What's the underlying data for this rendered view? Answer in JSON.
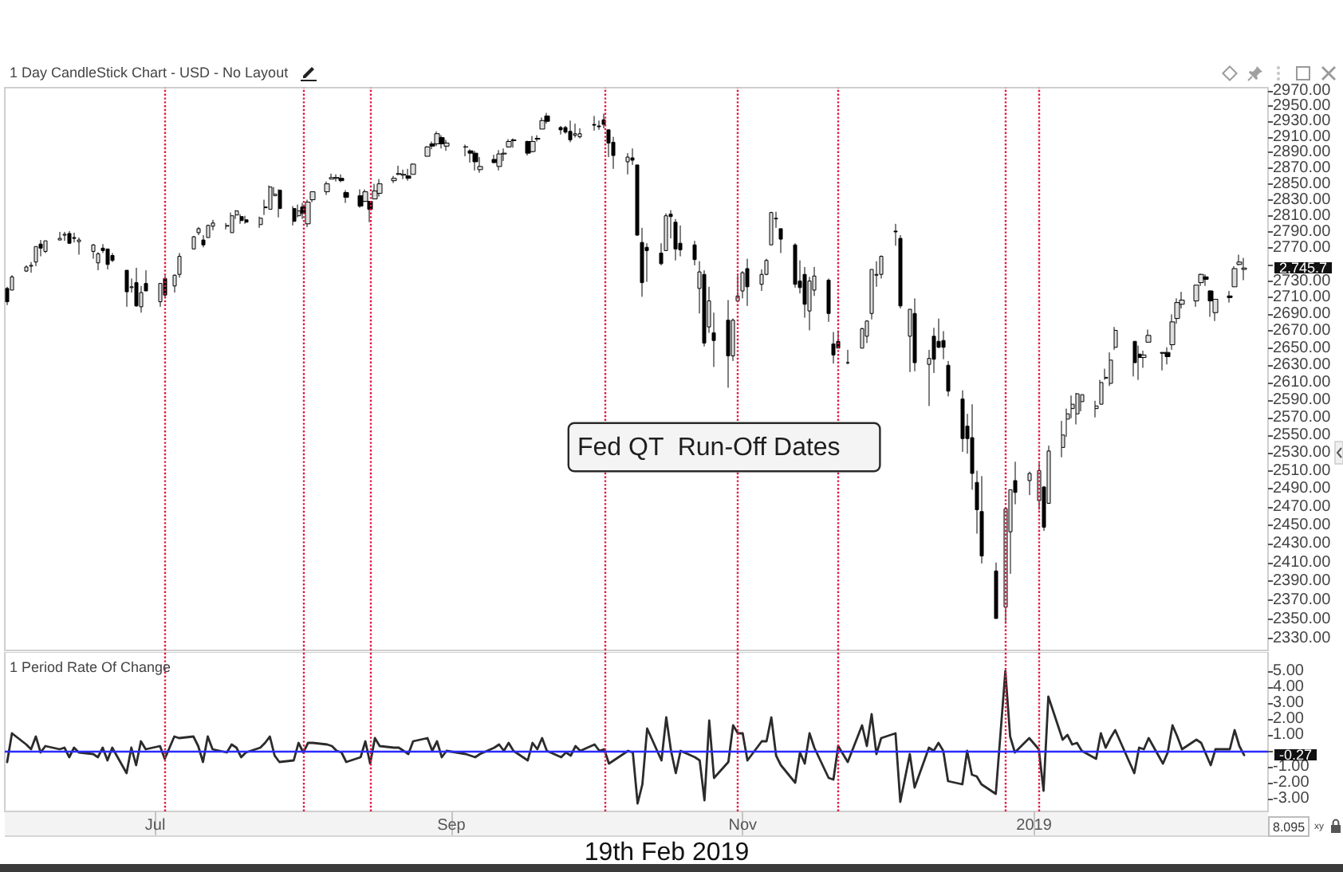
{
  "chart_data": [
    {
      "type": "candlestick",
      "title": "1 Day CandleStick Chart - USD - No Layout",
      "color": "#000000",
      "log": true,
      "tick_labels": "y",
      "x": [
        "2018-05-31",
        "2018-06-01",
        "2018-06-04",
        "2018-06-05",
        "2018-06-06",
        "2018-06-07",
        "2018-06-08",
        "2018-06-11",
        "2018-06-12",
        "2018-06-13",
        "2018-06-14",
        "2018-06-15",
        "2018-06-18",
        "2018-06-19",
        "2018-06-20",
        "2018-06-21",
        "2018-06-22",
        "2018-06-25",
        "2018-06-26",
        "2018-06-27",
        "2018-06-28",
        "2018-06-29",
        "2018-07-02",
        "2018-07-03",
        "2018-07-05",
        "2018-07-06",
        "2018-07-09",
        "2018-07-10",
        "2018-07-11",
        "2018-07-12",
        "2018-07-13",
        "2018-07-16",
        "2018-07-17",
        "2018-07-18",
        "2018-07-19",
        "2018-07-20",
        "2018-07-23",
        "2018-07-24",
        "2018-07-25",
        "2018-07-26",
        "2018-07-27",
        "2018-07-30",
        "2018-07-31",
        "2018-08-01",
        "2018-08-02",
        "2018-08-03",
        "2018-08-06",
        "2018-08-07",
        "2018-08-08",
        "2018-08-09",
        "2018-08-10",
        "2018-08-13",
        "2018-08-14",
        "2018-08-15",
        "2018-08-16",
        "2018-08-17",
        "2018-08-20",
        "2018-08-21",
        "2018-08-22",
        "2018-08-23",
        "2018-08-24",
        "2018-08-27",
        "2018-08-28",
        "2018-08-29",
        "2018-08-30",
        "2018-08-31",
        "2018-09-04",
        "2018-09-05",
        "2018-09-06",
        "2018-09-07",
        "2018-09-10",
        "2018-09-11",
        "2018-09-12",
        "2018-09-13",
        "2018-09-14",
        "2018-09-17",
        "2018-09-18",
        "2018-09-19",
        "2018-09-20",
        "2018-09-21",
        "2018-09-24",
        "2018-09-25",
        "2018-09-26",
        "2018-09-27",
        "2018-09-28",
        "2018-10-01",
        "2018-10-02",
        "2018-10-03",
        "2018-10-04",
        "2018-10-05",
        "2018-10-08",
        "2018-10-09",
        "2018-10-10",
        "2018-10-11",
        "2018-10-12",
        "2018-10-15",
        "2018-10-16",
        "2018-10-17",
        "2018-10-18",
        "2018-10-19",
        "2018-10-22",
        "2018-10-23",
        "2018-10-24",
        "2018-10-25",
        "2018-10-26",
        "2018-10-29",
        "2018-10-30",
        "2018-10-31",
        "2018-11-01",
        "2018-11-02",
        "2018-11-05",
        "2018-11-06",
        "2018-11-07",
        "2018-11-08",
        "2018-11-09",
        "2018-11-12",
        "2018-11-13",
        "2018-11-14",
        "2018-11-15",
        "2018-11-16",
        "2018-11-19",
        "2018-11-20",
        "2018-11-21",
        "2018-11-23",
        "2018-11-26",
        "2018-11-27",
        "2018-11-28",
        "2018-11-29",
        "2018-11-30",
        "2018-12-03",
        "2018-12-04",
        "2018-12-06",
        "2018-12-07",
        "2018-12-10",
        "2018-12-11",
        "2018-12-12",
        "2018-12-13",
        "2018-12-14",
        "2018-12-17",
        "2018-12-18",
        "2018-12-19",
        "2018-12-20",
        "2018-12-21",
        "2018-12-24",
        "2018-12-26",
        "2018-12-27",
        "2018-12-28",
        "2018-12-31",
        "2019-01-02",
        "2019-01-03",
        "2019-01-04",
        "2019-01-07",
        "2019-01-08",
        "2019-01-09",
        "2019-01-10",
        "2019-01-11",
        "2019-01-14",
        "2019-01-15",
        "2019-01-16",
        "2019-01-17",
        "2019-01-18",
        "2019-01-22",
        "2019-01-23",
        "2019-01-24",
        "2019-01-25",
        "2019-01-28",
        "2019-01-29",
        "2019-01-30",
        "2019-01-31",
        "2019-02-01",
        "2019-02-04",
        "2019-02-05",
        "2019-02-06",
        "2019-02-07",
        "2019-02-08",
        "2019-02-11",
        "2019-02-12",
        "2019-02-13",
        "2019-02-14"
      ],
      "xlim": [
        "2018-05-30T12:00",
        "2019-02-19"
      ],
      "ohlc": [
        [
          2721,
          2723,
          2701,
          2705
        ],
        [
          2719,
          2737,
          2719,
          2735
        ],
        [
          2742,
          2749,
          2741,
          2747
        ],
        [
          2748,
          2753,
          2740,
          2749
        ],
        [
          2753,
          2772,
          2748,
          2772
        ],
        [
          2775,
          2780,
          2760,
          2770
        ],
        [
          2766,
          2779,
          2764,
          2779
        ],
        [
          2780,
          2790,
          2780,
          2782
        ],
        [
          2786,
          2790,
          2779,
          2787
        ],
        [
          2788,
          2791,
          2775,
          2776
        ],
        [
          2783,
          2789,
          2777,
          2782
        ],
        [
          2778,
          2783,
          2762,
          2780
        ],
        [
          2766,
          2775,
          2757,
          2774
        ],
        [
          2752,
          2765,
          2743,
          2763
        ],
        [
          2770,
          2775,
          2764,
          2767
        ],
        [
          2769,
          2769,
          2744,
          2750
        ],
        [
          2761,
          2764,
          2753,
          2755
        ],
        [
          2743,
          2743,
          2699,
          2717
        ],
        [
          2722,
          2733,
          2716,
          2723
        ],
        [
          2728,
          2746,
          2699,
          2700
        ],
        [
          2699,
          2724,
          2692,
          2716
        ],
        [
          2727,
          2743,
          2718,
          2718
        ],
        [
          2705,
          2727,
          2699,
          2727
        ],
        [
          2733,
          2737,
          2711,
          2713
        ],
        [
          2724,
          2738,
          2716,
          2737
        ],
        [
          2738,
          2764,
          2734,
          2760
        ],
        [
          2769,
          2785,
          2769,
          2784
        ],
        [
          2789,
          2796,
          2786,
          2794
        ],
        [
          2780,
          2786,
          2771,
          2774
        ],
        [
          2783,
          2799,
          2783,
          2798
        ],
        [
          2797,
          2805,
          2792,
          2801
        ],
        [
          2797,
          2801,
          2793,
          2798
        ],
        [
          2789,
          2814,
          2789,
          2810
        ],
        [
          2811,
          2817,
          2806,
          2816
        ],
        [
          2809,
          2812,
          2800,
          2804
        ],
        [
          2805,
          2810,
          2800,
          2802
        ],
        [
          2799,
          2809,
          2795,
          2807
        ],
        [
          2821,
          2830,
          2811,
          2820
        ],
        [
          2818,
          2848,
          2818,
          2846
        ],
        [
          2835,
          2846,
          2835,
          2837
        ],
        [
          2842,
          2843,
          2808,
          2819
        ],
        [
          2819,
          2822,
          2798,
          2803
        ],
        [
          2810,
          2824,
          2808,
          2816
        ],
        [
          2821,
          2826,
          2806,
          2813
        ],
        [
          2800,
          2830,
          2796,
          2827
        ],
        [
          2830,
          2840,
          2827,
          2840
        ],
        [
          2840,
          2853,
          2836,
          2850
        ],
        [
          2856,
          2863,
          2856,
          2858
        ],
        [
          2857,
          2862,
          2853,
          2858
        ],
        [
          2857,
          2862,
          2852,
          2854
        ],
        [
          2839,
          2842,
          2826,
          2833
        ],
        [
          2835,
          2843,
          2820,
          2822
        ],
        [
          2828,
          2843,
          2827,
          2840
        ],
        [
          2828,
          2828,
          2802,
          2818
        ],
        [
          2831,
          2850,
          2831,
          2841
        ],
        [
          2838,
          2856,
          2834,
          2850
        ],
        [
          2854,
          2860,
          2851,
          2857
        ],
        [
          2862,
          2873,
          2861,
          2863
        ],
        [
          2861,
          2868,
          2856,
          2862
        ],
        [
          2860,
          2869,
          2854,
          2857
        ],
        [
          2862,
          2876,
          2862,
          2875
        ],
        [
          2885,
          2898,
          2885,
          2897
        ],
        [
          2901,
          2904,
          2894,
          2898
        ],
        [
          2901,
          2917,
          2898,
          2914
        ],
        [
          2909,
          2912,
          2895,
          2901
        ],
        [
          2898,
          2906,
          2892,
          2902
        ],
        [
          2897,
          2900,
          2885,
          2897
        ],
        [
          2892,
          2894,
          2877,
          2889
        ],
        [
          2889,
          2892,
          2867,
          2878
        ],
        [
          2868,
          2884,
          2864,
          2872
        ],
        [
          2881,
          2887,
          2876,
          2877
        ],
        [
          2872,
          2893,
          2867,
          2888
        ],
        [
          2888,
          2895,
          2879,
          2889
        ],
        [
          2897,
          2907,
          2896,
          2904
        ],
        [
          2906,
          2908,
          2896,
          2905
        ],
        [
          2904,
          2905,
          2886,
          2889
        ],
        [
          2891,
          2911,
          2890,
          2904
        ],
        [
          2907,
          2912,
          2904,
          2908
        ],
        [
          2920,
          2935,
          2920,
          2931
        ],
        [
          2937,
          2941,
          2927,
          2930
        ],
        [
          2922,
          2924,
          2913,
          2919
        ],
        [
          2922,
          2924,
          2914,
          2916
        ],
        [
          2917,
          2931,
          2903,
          2906
        ],
        [
          2912,
          2927,
          2909,
          2914
        ],
        [
          2910,
          2921,
          2908,
          2914
        ],
        [
          2926,
          2937,
          2918,
          2925
        ],
        [
          2924,
          2931,
          2919,
          2923
        ],
        [
          2932,
          2940,
          2921,
          2926
        ],
        [
          2919,
          2920,
          2884,
          2902
        ],
        [
          2903,
          2910,
          2869,
          2886
        ],
        [
          2878,
          2889,
          2862,
          2884
        ],
        [
          2883,
          2895,
          2874,
          2880
        ],
        [
          2874,
          2874,
          2785,
          2786
        ],
        [
          2777,
          2795,
          2711,
          2728
        ],
        [
          2771,
          2776,
          2729,
          2767
        ],
        [
          2764,
          2776,
          2749,
          2751
        ],
        [
          2767,
          2813,
          2767,
          2810
        ],
        [
          2812,
          2817,
          2782,
          2809
        ],
        [
          2802,
          2806,
          2755,
          2769
        ],
        [
          2776,
          2798,
          2760,
          2768
        ],
        [
          2774,
          2779,
          2749,
          2756
        ],
        [
          2721,
          2754,
          2691,
          2741
        ],
        [
          2738,
          2743,
          2652,
          2656
        ],
        [
          2675,
          2723,
          2668,
          2706
        ],
        [
          2668,
          2692,
          2628,
          2659
        ],
        [
          2683,
          2707,
          2604,
          2641
        ],
        [
          2641,
          2685,
          2635,
          2683
        ],
        [
          2706,
          2737,
          2706,
          2712
        ],
        [
          2718,
          2742,
          2709,
          2740
        ],
        [
          2745,
          2757,
          2700,
          2723
        ],
        [
          2726,
          2744,
          2718,
          2738
        ],
        [
          2738,
          2757,
          2737,
          2755
        ],
        [
          2774,
          2815,
          2774,
          2814
        ],
        [
          2806,
          2815,
          2795,
          2807
        ],
        [
          2794,
          2794,
          2764,
          2781
        ],
        [
          2774,
          2776,
          2722,
          2726
        ],
        [
          2730,
          2755,
          2715,
          2722
        ],
        [
          2738,
          2747,
          2686,
          2702
        ],
        [
          2694,
          2735,
          2671,
          2730
        ],
        [
          2719,
          2747,
          2712,
          2736
        ],
        [
          2731,
          2733,
          2681,
          2691
        ],
        [
          2655,
          2669,
          2632,
          2642
        ],
        [
          2658,
          2671,
          2650,
          2650
        ],
        [
          2633,
          2648,
          2631,
          2633
        ],
        [
          2650,
          2674,
          2650,
          2673
        ],
        [
          2664,
          2683,
          2656,
          2682
        ],
        [
          2691,
          2744,
          2684,
          2744
        ],
        [
          2737,
          2754,
          2723,
          2738
        ],
        [
          2738,
          2761,
          2733,
          2760
        ],
        [
          2791,
          2800,
          2773,
          2790
        ],
        [
          2782,
          2786,
          2697,
          2700
        ],
        [
          2664,
          2696,
          2622,
          2696
        ],
        [
          2691,
          2709,
          2623,
          2633
        ],
        [
          2631,
          2648,
          2583,
          2638
        ],
        [
          2664,
          2674,
          2621,
          2637
        ],
        [
          2658,
          2685,
          2650,
          2651
        ],
        [
          2659,
          2670,
          2637,
          2651
        ],
        [
          2630,
          2635,
          2594,
          2600
        ],
        [
          2591,
          2601,
          2531,
          2546
        ],
        [
          2560,
          2574,
          2529,
          2546
        ],
        [
          2547,
          2585,
          2489,
          2507
        ],
        [
          2497,
          2510,
          2441,
          2467
        ],
        [
          2465,
          2504,
          2409,
          2417
        ],
        [
          2401,
          2410,
          2351,
          2351
        ],
        [
          2363,
          2468,
          2347,
          2468
        ],
        [
          2443,
          2489,
          2398,
          2489
        ],
        [
          2499,
          2520,
          2473,
          2486
        ],
        [
          2499,
          2509,
          2483,
          2507
        ],
        [
          2477,
          2519,
          2467,
          2510
        ],
        [
          2492,
          2493,
          2444,
          2448
        ],
        [
          2474,
          2538,
          2474,
          2532
        ],
        [
          2536,
          2566,
          2525,
          2550
        ],
        [
          2568,
          2580,
          2548,
          2574
        ],
        [
          2580,
          2595,
          2569,
          2585
        ],
        [
          2574,
          2598,
          2562,
          2597
        ],
        [
          2588,
          2596,
          2577,
          2596
        ],
        [
          2580,
          2589,
          2570,
          2583
        ],
        [
          2585,
          2613,
          2585,
          2610
        ],
        [
          2615,
          2626,
          2613,
          2616
        ],
        [
          2609,
          2645,
          2606,
          2636
        ],
        [
          2651,
          2675,
          2648,
          2671
        ],
        [
          2658,
          2658,
          2617,
          2633
        ],
        [
          2643,
          2653,
          2613,
          2639
        ],
        [
          2639,
          2647,
          2627,
          2642
        ],
        [
          2657,
          2672,
          2657,
          2665
        ],
        [
          2645,
          2645,
          2624,
          2644
        ],
        [
          2645,
          2651,
          2631,
          2640
        ],
        [
          2654,
          2690,
          2648,
          2681
        ],
        [
          2685,
          2709,
          2679,
          2704
        ],
        [
          2702,
          2717,
          2697,
          2707
        ],
        [
          2706,
          2725,
          2699,
          2725
        ],
        [
          2728,
          2739,
          2724,
          2738
        ],
        [
          2735,
          2738,
          2724,
          2732
        ],
        [
          2718,
          2719,
          2687,
          2706
        ],
        [
          2692,
          2708,
          2682,
          2708
        ],
        [
          2712,
          2718,
          2704,
          2710
        ],
        [
          2723,
          2748,
          2723,
          2745
        ],
        [
          2750,
          2762,
          2749,
          2753
        ],
        [
          2744,
          2758,
          2731,
          2745.7
        ]
      ],
      "ylim": [
        2318,
        2974
      ],
      "yticks": [
        {
          "value": 2330,
          "label": "2330.00"
        },
        {
          "value": 2350,
          "label": "2350.00"
        },
        {
          "value": 2370,
          "label": "2370.00"
        },
        {
          "value": 2390,
          "label": "2390.00"
        },
        {
          "value": 2410,
          "label": "2410.00"
        },
        {
          "value": 2430,
          "label": "2430.00"
        },
        {
          "value": 2450,
          "label": "2450.00"
        },
        {
          "value": 2470,
          "label": "2470.00"
        },
        {
          "value": 2490,
          "label": "2490.00"
        },
        {
          "value": 2510,
          "label": "2510.00"
        },
        {
          "value": 2530,
          "label": "2530.00"
        },
        {
          "value": 2550,
          "label": "2550.00"
        },
        {
          "value": 2570,
          "label": "2570.00"
        },
        {
          "value": 2590,
          "label": "2590.00"
        },
        {
          "value": 2610,
          "label": "2610.00"
        },
        {
          "value": 2630,
          "label": "2630.00"
        },
        {
          "value": 2650,
          "label": "2650.00"
        },
        {
          "value": 2670,
          "label": "2670.00"
        },
        {
          "value": 2690,
          "label": "2690.00"
        },
        {
          "value": 2710,
          "label": "2710.00"
        },
        {
          "value": 2730,
          "label": "2730.00"
        },
        {
          "value": 2750,
          "label": null
        },
        {
          "value": 2770,
          "label": "2770.00"
        },
        {
          "value": 2790,
          "label": "2790.00"
        },
        {
          "value": 2810,
          "label": "2810.00"
        },
        {
          "value": 2830,
          "label": "2830.00"
        },
        {
          "value": 2850,
          "label": "2850.00"
        },
        {
          "value": 2870,
          "label": "2870.00"
        },
        {
          "value": 2890,
          "label": "2890.00"
        },
        {
          "value": 2910,
          "label": "2910.00"
        },
        {
          "value": 2930,
          "label": "2930.00"
        },
        {
          "value": 2950,
          "label": "2950.00"
        },
        {
          "value": 2970,
          "label": "2970.00"
        }
      ],
      "ref_lines": [
        {
          "axis": "x",
          "value": "2018-07-03",
          "color": "#e3173e",
          "line_style": "dotted"
        },
        {
          "axis": "x",
          "value": "2018-08-01",
          "color": "#e3173e",
          "line_style": "dotted"
        },
        {
          "axis": "x",
          "value": "2018-08-15",
          "color": "#e3173e",
          "line_style": "dotted"
        },
        {
          "axis": "x",
          "value": "2018-10-03",
          "color": "#e3173e",
          "line_style": "dotted"
        },
        {
          "axis": "x",
          "value": "2018-10-31",
          "color": "#e3173e",
          "line_style": "dotted"
        },
        {
          "axis": "x",
          "value": "2018-11-21",
          "color": "#e3173e",
          "line_style": "dotted"
        },
        {
          "axis": "x",
          "value": "2018-12-26",
          "color": "#e3173e",
          "line_style": "dotted"
        },
        {
          "axis": "x",
          "value": "2019-01-02",
          "color": "#e3173e",
          "line_style": "dotted"
        }
      ],
      "annotations": [
        "Fed QT  Run-Off Dates",
        "2,745.7"
      ]
    },
    {
      "type": "line",
      "title": "1 Period Rate Of Change",
      "x": [
        "2018-05-31",
        "2018-06-01",
        "2018-06-04",
        "2018-06-05",
        "2018-06-06",
        "2018-06-07",
        "2018-06-08",
        "2018-06-11",
        "2018-06-12",
        "2018-06-13",
        "2018-06-14",
        "2018-06-15",
        "2018-06-18",
        "2018-06-19",
        "2018-06-20",
        "2018-06-21",
        "2018-06-22",
        "2018-06-25",
        "2018-06-26",
        "2018-06-27",
        "2018-06-28",
        "2018-06-29",
        "2018-07-02",
        "2018-07-03",
        "2018-07-05",
        "2018-07-06",
        "2018-07-09",
        "2018-07-10",
        "2018-07-11",
        "2018-07-12",
        "2018-07-13",
        "2018-07-16",
        "2018-07-17",
        "2018-07-18",
        "2018-07-19",
        "2018-07-20",
        "2018-07-23",
        "2018-07-24",
        "2018-07-25",
        "2018-07-26",
        "2018-07-27",
        "2018-07-30",
        "2018-07-31",
        "2018-08-01",
        "2018-08-02",
        "2018-08-03",
        "2018-08-06",
        "2018-08-07",
        "2018-08-08",
        "2018-08-09",
        "2018-08-10",
        "2018-08-13",
        "2018-08-14",
        "2018-08-15",
        "2018-08-16",
        "2018-08-17",
        "2018-08-20",
        "2018-08-21",
        "2018-08-22",
        "2018-08-23",
        "2018-08-24",
        "2018-08-27",
        "2018-08-28",
        "2018-08-29",
        "2018-08-30",
        "2018-08-31",
        "2018-09-04",
        "2018-09-05",
        "2018-09-06",
        "2018-09-07",
        "2018-09-10",
        "2018-09-11",
        "2018-09-12",
        "2018-09-13",
        "2018-09-14",
        "2018-09-17",
        "2018-09-18",
        "2018-09-19",
        "2018-09-20",
        "2018-09-21",
        "2018-09-24",
        "2018-09-25",
        "2018-09-26",
        "2018-09-27",
        "2018-09-28",
        "2018-10-01",
        "2018-10-02",
        "2018-10-03",
        "2018-10-04",
        "2018-10-05",
        "2018-10-08",
        "2018-10-09",
        "2018-10-10",
        "2018-10-11",
        "2018-10-12",
        "2018-10-15",
        "2018-10-16",
        "2018-10-17",
        "2018-10-18",
        "2018-10-19",
        "2018-10-22",
        "2018-10-23",
        "2018-10-24",
        "2018-10-25",
        "2018-10-26",
        "2018-10-29",
        "2018-10-30",
        "2018-10-31",
        "2018-11-01",
        "2018-11-02",
        "2018-11-05",
        "2018-11-06",
        "2018-11-07",
        "2018-11-08",
        "2018-11-09",
        "2018-11-12",
        "2018-11-13",
        "2018-11-14",
        "2018-11-15",
        "2018-11-16",
        "2018-11-19",
        "2018-11-20",
        "2018-11-21",
        "2018-11-23",
        "2018-11-26",
        "2018-11-27",
        "2018-11-28",
        "2018-11-29",
        "2018-11-30",
        "2018-12-03",
        "2018-12-04",
        "2018-12-06",
        "2018-12-07",
        "2018-12-10",
        "2018-12-11",
        "2018-12-12",
        "2018-12-13",
        "2018-12-14",
        "2018-12-17",
        "2018-12-18",
        "2018-12-19",
        "2018-12-20",
        "2018-12-21",
        "2018-12-24",
        "2018-12-26",
        "2018-12-27",
        "2018-12-28",
        "2018-12-31",
        "2019-01-02",
        "2019-01-03",
        "2019-01-04",
        "2019-01-07",
        "2019-01-08",
        "2019-01-09",
        "2019-01-10",
        "2019-01-11",
        "2019-01-14",
        "2019-01-15",
        "2019-01-16",
        "2019-01-17",
        "2019-01-18",
        "2019-01-22",
        "2019-01-23",
        "2019-01-24",
        "2019-01-25",
        "2019-01-28",
        "2019-01-29",
        "2019-01-30",
        "2019-01-31",
        "2019-02-01",
        "2019-02-04",
        "2019-02-05",
        "2019-02-06",
        "2019-02-07",
        "2019-02-08",
        "2019-02-11",
        "2019-02-12",
        "2019-02-13",
        "2019-02-14"
      ],
      "xlim": [
        "2018-05-30T12:00",
        "2019-02-19"
      ],
      "xticks": [
        {
          "value": "2018-07-01",
          "label": "Jul"
        },
        {
          "value": "2018-09-01",
          "label": "Sep"
        },
        {
          "value": "2018-11-01",
          "label": "Nov"
        },
        {
          "value": "2019-01-01",
          "label": "2019"
        }
      ],
      "series": [
        {
          "color": "#2b2b2b",
          "values": [
            -0.7,
            1.1,
            0.4,
            0.1,
            0.9,
            -0.1,
            0.3,
            0.1,
            0.2,
            -0.4,
            0.2,
            -0.1,
            -0.2,
            -0.4,
            0.2,
            -0.6,
            0.2,
            -1.4,
            0.2,
            -0.9,
            0.6,
            0.1,
            0.3,
            -0.5,
            0.9,
            0.8,
            0.9,
            0.3,
            -0.7,
            0.9,
            0.1,
            -0.1,
            0.4,
            0.2,
            -0.4,
            -0.1,
            0.2,
            0.5,
            0.9,
            -0.3,
            -0.7,
            -0.6,
            0.5,
            -0.1,
            0.5,
            0.5,
            0.4,
            0.3,
            0.0,
            -0.1,
            -0.7,
            -0.4,
            0.6,
            -0.8,
            0.8,
            0.3,
            0.2,
            0.2,
            0.0,
            -0.2,
            0.6,
            0.8,
            0.0,
            0.6,
            -0.4,
            0.0,
            -0.2,
            -0.3,
            -0.4,
            -0.2,
            0.2,
            0.4,
            0.0,
            0.5,
            0.0,
            -0.6,
            0.5,
            0.1,
            0.8,
            0.0,
            -0.4,
            -0.1,
            -0.3,
            0.3,
            0.0,
            0.4,
            0.0,
            0.1,
            -0.8,
            -0.6,
            0.0,
            -0.1,
            -3.3,
            -2.1,
            1.4,
            -0.6,
            2.1,
            0.0,
            -1.4,
            0.0,
            -0.4,
            -0.6,
            -3.1,
            1.9,
            -1.7,
            -0.7,
            1.6,
            1.1,
            1.1,
            -0.6,
            0.6,
            0.6,
            2.1,
            -0.3,
            -0.9,
            -2.0,
            -0.1,
            -0.8,
            1.1,
            0.2,
            -1.7,
            -1.8,
            0.3,
            -0.7,
            1.6,
            0.3,
            2.3,
            -0.2,
            0.8,
            1.1,
            -3.2,
            -0.2,
            -2.3,
            0.2,
            0.0,
            0.5,
            0.0,
            -1.9,
            -2.1,
            0.0,
            -1.5,
            -1.6,
            -2.1,
            -2.7,
            5.0,
            0.9,
            -0.1,
            0.8,
            0.1,
            -2.5,
            3.4,
            0.7,
            1.0,
            0.4,
            0.5,
            0.0,
            -0.5,
            1.1,
            0.2,
            0.8,
            1.3,
            -1.4,
            0.2,
            0.1,
            0.8,
            -0.8,
            -0.1,
            1.6,
            0.9,
            0.1,
            0.7,
            0.5,
            -0.2,
            -0.9,
            0.1,
            0.1,
            1.3,
            0.3,
            -0.27
          ]
        }
      ],
      "ylim": [
        -3.8,
        6.2
      ],
      "yticks": [
        {
          "value": -3,
          "label": "-3.00"
        },
        {
          "value": -2,
          "label": "-2.00"
        },
        {
          "value": -1,
          "label": "-1.00"
        },
        {
          "value": 0,
          "label": null
        },
        {
          "value": 1,
          "label": "1.00"
        },
        {
          "value": 2,
          "label": "2.00"
        },
        {
          "value": 3,
          "label": "3.00"
        },
        {
          "value": 4,
          "label": "4.00"
        },
        {
          "value": 5,
          "label": "5.00"
        }
      ],
      "ref_lines": [
        {
          "axis": "x",
          "value": "2018-07-03",
          "color": "#e3173e",
          "line_style": "dotted"
        },
        {
          "axis": "x",
          "value": "2018-08-01",
          "color": "#e3173e",
          "line_style": "dotted"
        },
        {
          "axis": "x",
          "value": "2018-08-15",
          "color": "#e3173e",
          "line_style": "dotted"
        },
        {
          "axis": "x",
          "value": "2018-10-03",
          "color": "#e3173e",
          "line_style": "dotted"
        },
        {
          "axis": "x",
          "value": "2018-10-31",
          "color": "#e3173e",
          "line_style": "dotted"
        },
        {
          "axis": "x",
          "value": "2018-11-21",
          "color": "#e3173e",
          "line_style": "dotted"
        },
        {
          "axis": "x",
          "value": "2018-12-26",
          "color": "#e3173e",
          "line_style": "dotted"
        },
        {
          "axis": "x",
          "value": "2019-01-02",
          "color": "#e3173e",
          "line_style": "dotted"
        },
        {
          "axis": "y",
          "value": 0,
          "color": "#2a2aff",
          "line_style": "solid"
        }
      ],
      "annotations": [
        "-0.27",
        "19th Feb 2019",
        "8.095",
        "xy"
      ]
    }
  ]
}
